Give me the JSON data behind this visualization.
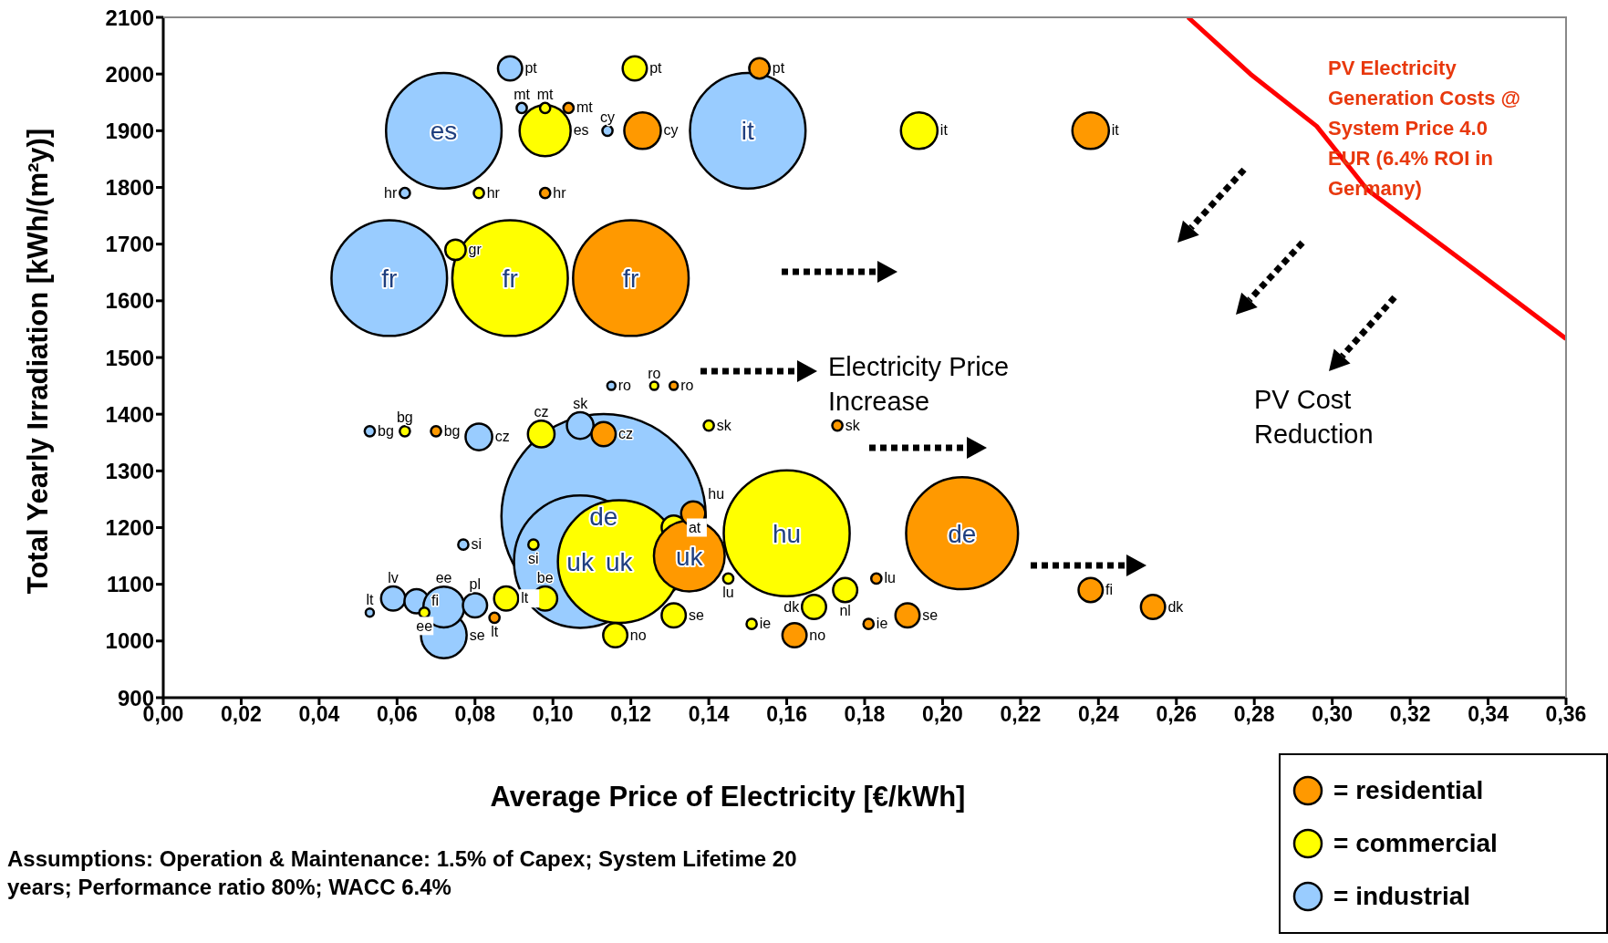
{
  "chart_data": {
    "type": "bubble",
    "xlabel": "Average Price of Electricity [€/kWh]",
    "ylabel": "Total Yearly Irradiation [kWh/(m²y)]",
    "xlim": [
      0,
      0.36
    ],
    "xticks": [
      {
        "value": 0,
        "label": "0,00"
      },
      {
        "value": 0.02,
        "label": "0,02"
      },
      {
        "value": 0.04,
        "label": "0,04"
      },
      {
        "value": 0.06,
        "label": "0,06"
      },
      {
        "value": 0.08,
        "label": "0,08"
      },
      {
        "value": 0.1,
        "label": "0,10"
      },
      {
        "value": 0.12,
        "label": "0,12"
      },
      {
        "value": 0.14,
        "label": "0,14"
      },
      {
        "value": 0.16,
        "label": "0,16"
      },
      {
        "value": 0.18,
        "label": "0,18"
      },
      {
        "value": 0.2,
        "label": "0,20"
      },
      {
        "value": 0.22,
        "label": "0,22"
      },
      {
        "value": 0.24,
        "label": "0,24"
      },
      {
        "value": 0.26,
        "label": "0,26"
      },
      {
        "value": 0.28,
        "label": "0,28"
      },
      {
        "value": 0.3,
        "label": "0,30"
      },
      {
        "value": 0.32,
        "label": "0,32"
      },
      {
        "value": 0.34,
        "label": "0,34"
      },
      {
        "value": 0.36,
        "label": "0,36"
      }
    ],
    "ylim": [
      900,
      2100
    ],
    "yticks": [
      900,
      1000,
      1100,
      1200,
      1300,
      1400,
      1500,
      1600,
      1700,
      1800,
      1900,
      2000,
      2100
    ],
    "grid": false,
    "legend": "bottom right",
    "series": [
      {
        "name": "= industrial",
        "color": "#99ccff",
        "x": [
          0.113,
          0.107,
          0.072,
          0.15,
          0.058,
          0.089,
          0.114,
          0.092,
          0.062,
          0.115,
          0.053,
          0.081,
          0.107,
          0.077,
          0.072,
          0.059,
          0.065,
          0.072,
          0.08,
          0.053
        ],
        "values": [
          1220,
          1140,
          1900,
          1900,
          1640,
          2010,
          1900,
          1940,
          1790,
          1450,
          1370,
          1360,
          1380,
          1170,
          1010,
          1075,
          1070,
          1060,
          1063,
          1050
        ],
        "sizes": [
          1,
          0.42,
          0.32,
          0.32,
          0.32,
          0.014,
          0.0025,
          0.0025,
          0.0025,
          0.0016,
          0.0025,
          0.017,
          0.017,
          0.0025,
          0.05,
          0.014,
          0.014,
          0.04,
          0.014,
          0.0016
        ],
        "value_labels": [
          "de",
          "uk",
          "es",
          "it",
          "fr",
          "pt",
          "cy",
          "mt",
          "hr",
          "ro",
          "bg",
          "cz",
          "sk",
          "si",
          "se",
          "lv",
          "fi",
          "ee",
          "pl",
          "lt"
        ]
      },
      {
        "name": "= commercial",
        "color": "#ffff00",
        "x": [
          0.16,
          0.117,
          0.089,
          0.098,
          0.121,
          0.194,
          0.098,
          0.081,
          0.075,
          0.126,
          0.062,
          0.097,
          0.14,
          0.095,
          0.131,
          0.098,
          0.088,
          0.116,
          0.131,
          0.145,
          0.175,
          0.167,
          0.151,
          0.067
        ],
        "values": [
          1190,
          1140,
          1640,
          1900,
          2010,
          1900,
          1940,
          1790,
          1690,
          1450,
          1370,
          1365,
          1380,
          1170,
          1200,
          1075,
          1075,
          1010,
          1045,
          1110,
          1090,
          1060,
          1030,
          1050
        ],
        "sizes": [
          0.38,
          0.36,
          0.32,
          0.0625,
          0.014,
          0.032,
          0.0025,
          0.0025,
          0.01,
          0.0016,
          0.0025,
          0.017,
          0.0025,
          0.0025,
          0.014,
          0.014,
          0.014,
          0.014,
          0.014,
          0.0025,
          0.014,
          0.014,
          0.0025,
          0.0025
        ],
        "value_labels": [
          "hu",
          "uk",
          "fr",
          "es",
          "pt",
          "it",
          "mt",
          "hr",
          "gr",
          "ro",
          "bg",
          "cz",
          "sk",
          "si",
          "at",
          "be",
          "lt",
          "no",
          "se",
          "lu",
          "nl",
          "dk",
          "ie",
          "ee"
        ]
      },
      {
        "name": "= residential",
        "color": "#ff9900",
        "x": [
          0.12,
          0.205,
          0.135,
          0.153,
          0.123,
          0.238,
          0.104,
          0.098,
          0.131,
          0.07,
          0.113,
          0.173,
          0.136,
          0.183,
          0.162,
          0.181,
          0.191,
          0.238,
          0.254,
          0.085
        ],
        "values": [
          1640,
          1190,
          1150,
          2010,
          1900,
          1900,
          1940,
          1790,
          1450,
          1370,
          1365,
          1380,
          1225,
          1110,
          1010,
          1030,
          1045,
          1090,
          1060,
          1041
        ],
        "sizes": [
          0.32,
          0.3,
          0.12,
          0.01,
          0.032,
          0.032,
          0.0025,
          0.0025,
          0.0016,
          0.0025,
          0.014,
          0.0025,
          0.014,
          0.0025,
          0.014,
          0.0025,
          0.014,
          0.014,
          0.014,
          0.0025
        ],
        "value_labels": [
          "fr",
          "de",
          "uk",
          "pt",
          "cy",
          "it",
          "mt",
          "hr",
          "ro",
          "bg",
          "cz",
          "sk",
          "hu",
          "lu",
          "no",
          "ie",
          "se",
          "fi",
          "dk",
          "lt"
        ]
      },
      {
        "type": "line",
        "name": "PV Electricity Generation Costs @ System Price 4.0 EUR (6.4% ROI in Germany)",
        "color": "#ff0000",
        "x": [
          0.263,
          0.279,
          0.296,
          0.309,
          0.3355,
          0.36
        ],
        "values": [
          2100,
          2000,
          1908,
          1796,
          1660,
          1533
        ]
      }
    ],
    "annotations": [
      "Electricity Price Increase",
      "PV Cost Reduction",
      "Assumptions: Operation & Maintenance: 1.5% of Capex; System Lifetime 20 years; Performance ratio 80%; WACC 6.4%"
    ]
  }
}
